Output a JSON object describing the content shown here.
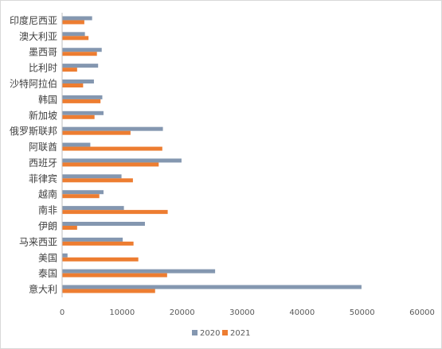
{
  "chart_data": {
    "type": "bar",
    "orientation": "horizontal",
    "categories": [
      "印度尼西亚",
      "澳大利亚",
      "墨西哥",
      "比利时",
      "沙特阿拉伯",
      "韩国",
      "新加坡",
      "俄罗斯联邦",
      "阿联酋",
      "西班牙",
      "菲律宾",
      "越南",
      "南非",
      "伊朗",
      "马来西亚",
      "美国",
      "泰国",
      "意大利"
    ],
    "series": [
      {
        "name": "2020",
        "color": "#8497b0",
        "values": [
          5000,
          3800,
          6600,
          6000,
          5300,
          6700,
          6900,
          16800,
          4700,
          19900,
          9900,
          6900,
          10300,
          13800,
          10100,
          900,
          25500,
          49900
        ]
      },
      {
        "name": "2021",
        "color": "#ed7d31",
        "values": [
          3700,
          4400,
          5800,
          2500,
          3500,
          6400,
          5400,
          11400,
          16700,
          16100,
          11800,
          6200,
          17600,
          2500,
          11900,
          12700,
          17500,
          15500
        ]
      }
    ],
    "xlim": [
      0,
      60000
    ],
    "xticks": [
      0,
      10000,
      20000,
      30000,
      40000,
      50000,
      60000
    ],
    "grid": false,
    "legend_position": "bottom"
  }
}
